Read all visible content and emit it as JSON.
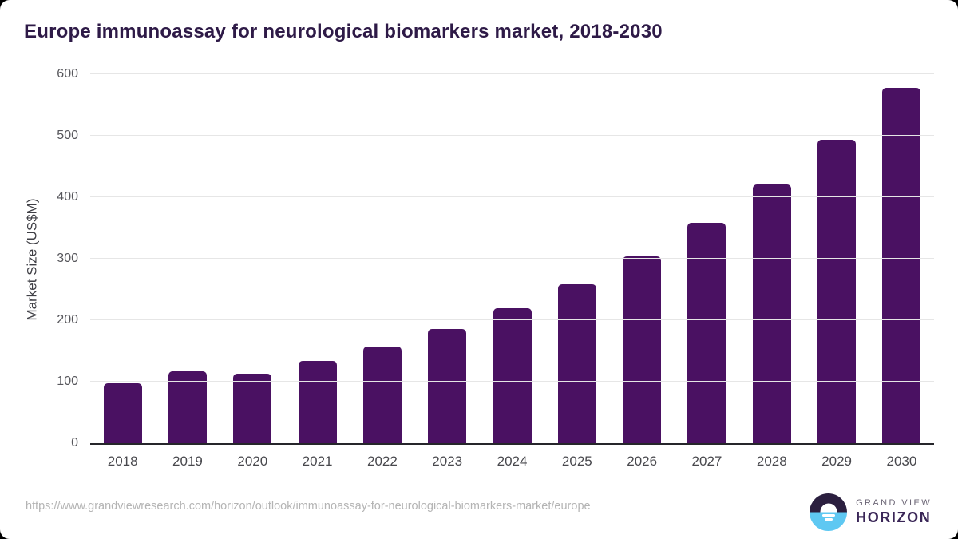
{
  "header": {
    "title": "Europe immunoassay for neurological biomarkers market, 2018-2030"
  },
  "chart_data": {
    "type": "bar",
    "title": "Europe immunoassay for neurological biomarkers market, 2018-2030",
    "categories": [
      "2018",
      "2019",
      "2020",
      "2021",
      "2022",
      "2023",
      "2024",
      "2025",
      "2026",
      "2027",
      "2028",
      "2029",
      "2030"
    ],
    "values": [
      98,
      117,
      113,
      134,
      157,
      186,
      219,
      258,
      304,
      358,
      421,
      493,
      578
    ],
    "xlabel": "",
    "ylabel": "Market Size (US$M)",
    "ylim": [
      0,
      600
    ],
    "yticks": [
      0,
      100,
      200,
      300,
      400,
      500,
      600
    ],
    "grid": "horizontal",
    "legend": "none",
    "bar_color": "#4a1162"
  },
  "footer": {
    "source_url": "https://www.grandviewresearch.com/horizon/outlook/immunoassay-for-neurological-biomarkers-market/europe",
    "logo": {
      "top": "GRAND VIEW",
      "bottom": "HORIZON"
    }
  },
  "colors": {
    "title_text": "#2e1a47",
    "bar": "#4a1162",
    "axis_line": "#26262b",
    "gridline": "#e6e6e6",
    "tick_text": "#57575c",
    "url_text": "#b4b4b4",
    "logo_dark_half": "#2b1f3f",
    "logo_blue_half": "#5ec8f2"
  }
}
